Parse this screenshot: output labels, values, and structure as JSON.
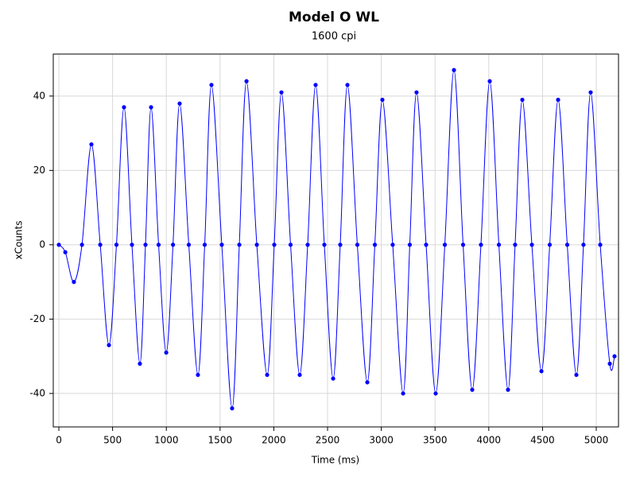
{
  "chart_data": {
    "type": "line",
    "title": "Model O WL",
    "subtitle": "1600 cpi",
    "x_label": "Time (ms)",
    "y_label": "xCounts",
    "x": [
      0,
      60,
      140,
      215,
      303,
      385,
      466,
      536,
      606,
      680,
      754,
      806,
      858,
      928,
      999,
      1062,
      1124,
      1209,
      1294,
      1357,
      1420,
      1516,
      1612,
      1679,
      1746,
      1842,
      1938,
      2004,
      2071,
      2156,
      2241,
      2315,
      2389,
      2470,
      2552,
      2618,
      2685,
      2777,
      2870,
      2940,
      3010,
      3106,
      3203,
      3265,
      3328,
      3417,
      3506,
      3591,
      3676,
      3761,
      3846,
      3927,
      4009,
      4094,
      4179,
      4245,
      4312,
      4401,
      4490,
      4567,
      4645,
      4730,
      4815,
      4881,
      4948,
      5037,
      5126,
      5170
    ],
    "series": [
      {
        "name": "xCounts",
        "color": "#0000ff",
        "values": [
          0,
          -2,
          -10,
          0,
          27,
          0,
          -27,
          0,
          37,
          0,
          -32,
          0,
          37,
          0,
          -29,
          0,
          38,
          0,
          -35,
          0,
          43,
          0,
          -44,
          0,
          44,
          0,
          -35,
          0,
          41,
          0,
          -35,
          0,
          43,
          0,
          -36,
          0,
          43,
          0,
          -37,
          0,
          39,
          0,
          -40,
          0,
          41,
          0,
          -40,
          0,
          47,
          0,
          -39,
          0,
          44,
          0,
          -39,
          0,
          39,
          0,
          -34,
          0,
          39,
          0,
          -35,
          0,
          41,
          0,
          -32,
          -30
        ]
      }
    ],
    "xlim": [
      -52,
      5207
    ],
    "ylim": [
      -49,
      51.3
    ],
    "xticks": [
      0,
      500,
      1000,
      1500,
      2000,
      2500,
      3000,
      3500,
      4000,
      4500,
      5000
    ],
    "yticks": [
      -40,
      -20,
      0,
      20,
      40
    ],
    "grid": true
  }
}
